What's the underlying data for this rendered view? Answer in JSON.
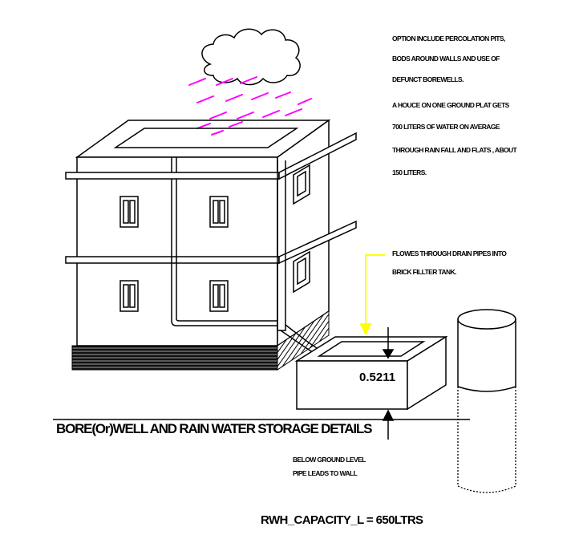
{
  "notes": {
    "line1": "OPTION INCLUDE PERCOLATION PITS,",
    "line2": "BODS AROUND WALLS AND USE OF",
    "line3": "DEFUNCT BOREWELLS.",
    "line4": "A HOUCE ON ONE GROUND PLAT GETS",
    "line5": "700 LITERS OF WATER ON AVERAGE",
    "line6": "THROUGH RAIN FALL AND FLATS , ABOUT",
    "line7": "150 LITERS."
  },
  "flow_note": {
    "line1": "FLOWES THROUGH DRAIN PIPES INTO",
    "line2": "BRICK FILLTER TANK."
  },
  "tank_dimension": "0.5211",
  "title": "BORE(Or)WELL AND RAIN WATER STORAGE DETAILS",
  "below_note": {
    "line1": "BELOW GROUND LEVEL",
    "line2": "PIPE LEADS TO WALL"
  },
  "capacity": "RWH_CAPACITY_L = 650LTRS",
  "colors": {
    "rain": "#ff00ff",
    "leader": "#ffff00",
    "line": "#000000"
  }
}
